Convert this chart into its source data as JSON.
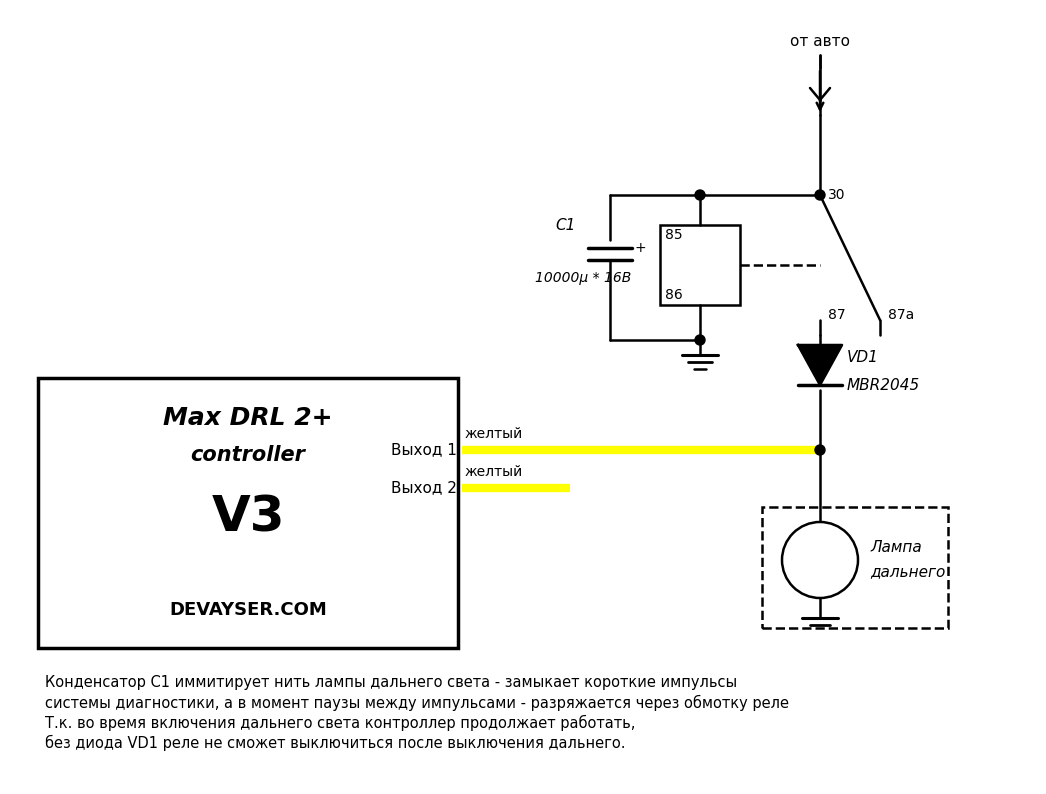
{
  "bg_color": "#ffffff",
  "bottom_text_lines": [
    "Конденсатор C1 иммитирует нить лампы дальнего света - замыкает короткие импульсы",
    "системы диагностики, а в момент паузы между импульсами - разряжается через обмотку реле",
    "Т.к. во время включения дальнего света контроллер продолжает работать,",
    "без диода VD1 реле не сможет выключиться после выключения дальнего."
  ],
  "yellow_color": "#ffff00",
  "black": "#000000",
  "white": "#ffffff"
}
